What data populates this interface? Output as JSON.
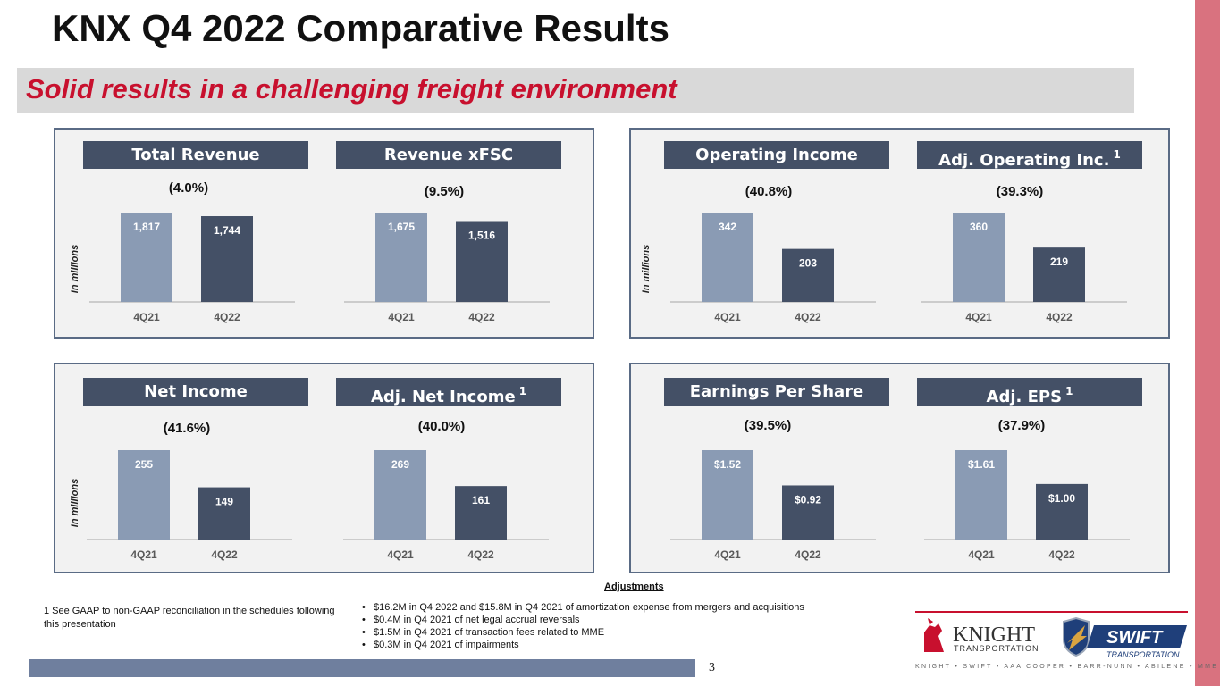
{
  "slide": {
    "title": "KNX Q4 2022 Comparative Results",
    "subtitle": "Solid results in a challenging freight environment",
    "page_number": "3",
    "y_axis_label": "In millions"
  },
  "colors": {
    "bar_4q21": "#8a9bb4",
    "bar_4q22": "#445066",
    "header_bg": "#445066",
    "subtitle_text": "#c8102e",
    "right_strip": "#d9727f"
  },
  "chart_data": [
    {
      "type": "bar",
      "title": "Total Revenue",
      "superscript": "",
      "change": "(4.0%)",
      "categories": [
        "4Q21",
        "4Q22"
      ],
      "values": [
        1817,
        1744
      ],
      "value_labels": [
        "1,817",
        "1,744"
      ],
      "ylabel": "In millions"
    },
    {
      "type": "bar",
      "title": "Revenue xFSC",
      "superscript": "",
      "change": "(9.5%)",
      "categories": [
        "4Q21",
        "4Q22"
      ],
      "values": [
        1675,
        1516
      ],
      "value_labels": [
        "1,675",
        "1,516"
      ],
      "ylabel": ""
    },
    {
      "type": "bar",
      "title": "Operating Income",
      "superscript": "",
      "change": "(40.8%)",
      "categories": [
        "4Q21",
        "4Q22"
      ],
      "values": [
        342,
        203
      ],
      "value_labels": [
        "342",
        "203"
      ],
      "ylabel": "In millions"
    },
    {
      "type": "bar",
      "title": "Adj. Operating Inc.",
      "superscript": "1",
      "change": "(39.3%)",
      "categories": [
        "4Q21",
        "4Q22"
      ],
      "values": [
        360,
        219
      ],
      "value_labels": [
        "360",
        "219"
      ],
      "ylabel": ""
    },
    {
      "type": "bar",
      "title": "Net Income",
      "superscript": "",
      "change": "(41.6%)",
      "categories": [
        "4Q21",
        "4Q22"
      ],
      "values": [
        255,
        149
      ],
      "value_labels": [
        "255",
        "149"
      ],
      "ylabel": "In millions"
    },
    {
      "type": "bar",
      "title": "Adj. Net Income",
      "superscript": "1",
      "change": "(40.0%)",
      "categories": [
        "4Q21",
        "4Q22"
      ],
      "values": [
        269,
        161
      ],
      "value_labels": [
        "269",
        "161"
      ],
      "ylabel": ""
    },
    {
      "type": "bar",
      "title": "Earnings Per Share",
      "superscript": "",
      "change": "(39.5%)",
      "categories": [
        "4Q21",
        "4Q22"
      ],
      "values": [
        1.52,
        0.92
      ],
      "value_labels": [
        "$1.52",
        "$0.92"
      ],
      "ylabel": ""
    },
    {
      "type": "bar",
      "title": "Adj. EPS",
      "superscript": "1",
      "change": "(37.9%)",
      "categories": [
        "4Q21",
        "4Q22"
      ],
      "values": [
        1.61,
        1.0
      ],
      "value_labels": [
        "$1.61",
        "$1.00"
      ],
      "ylabel": ""
    }
  ],
  "adjustments": {
    "title": "Adjustments",
    "items": [
      "$16.2M in Q4 2022 and $15.8M in Q4 2021 of amortization expense from mergers and acquisitions",
      "$0.4M in Q4 2021 of net legal accrual reversals",
      "$1.5M in Q4 2021 of transaction fees related to MME",
      "$0.3M in Q4 2021 of impairments"
    ]
  },
  "footnote": "1   See GAAP to non-GAAP reconciliation in the schedules following this presentation",
  "logo": {
    "knight_name": "KNIGHT",
    "knight_sub": "TRANSPORTATION",
    "swift_name": "SWIFT",
    "swift_sub": "TRANSPORTATION",
    "tagline": "KNIGHT • SWIFT • AAA COOPER • BARR-NUNN • ABILENE • MME"
  }
}
